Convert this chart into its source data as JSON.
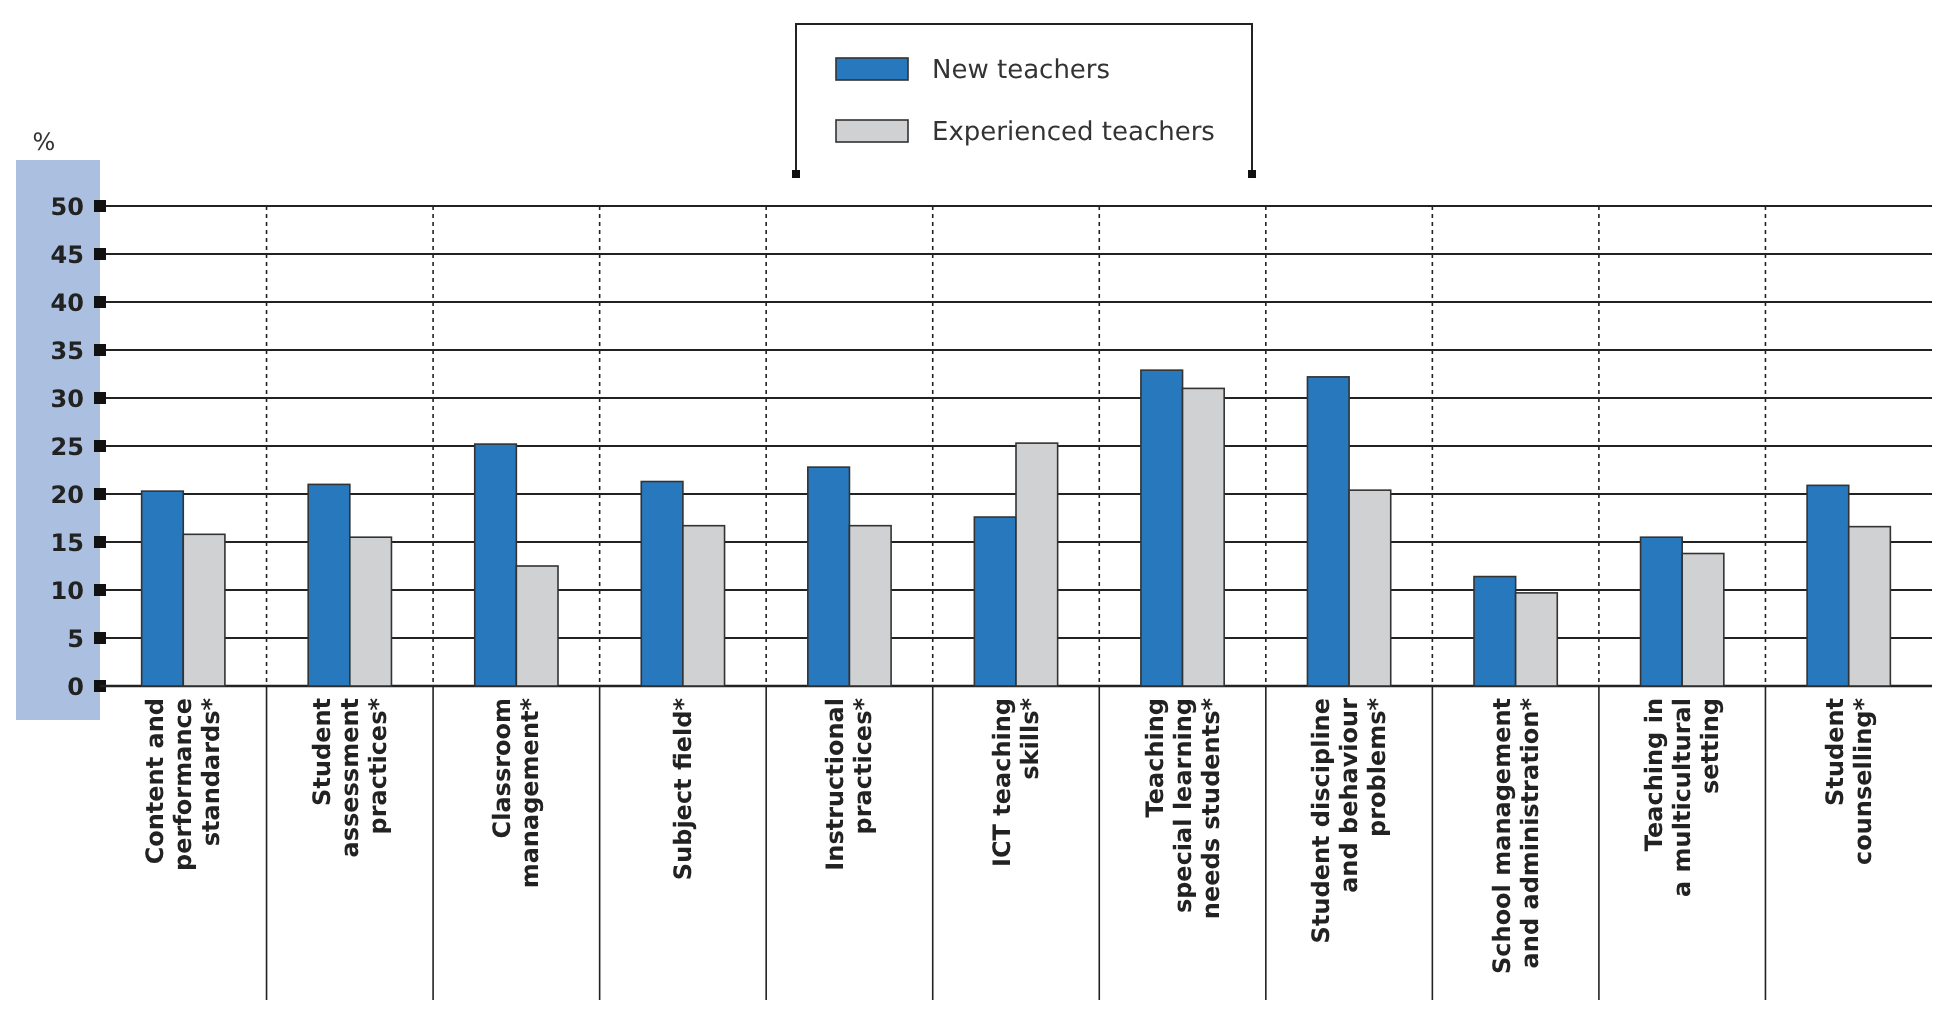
{
  "chart_data": {
    "type": "bar",
    "ylabel": "%",
    "categories": [
      "Content and\nperformance\nstandards*",
      "Student\nassessment\npractices*",
      "Classroom\nmanagement*",
      "Subject field*",
      "Instructional\npractices*",
      "ICT teaching\nskills*",
      "Teaching\nspecial learning\nneeds students*",
      "Student discipline\nand behaviour\nproblems*",
      "School management\nand administration*",
      "Teaching in\na multicultural\nsetting",
      "Student\ncounselling*"
    ],
    "series": [
      {
        "name": "New teachers",
        "color": "#2878be",
        "values": [
          20.3,
          21.0,
          25.2,
          21.3,
          22.8,
          17.6,
          32.9,
          32.2,
          11.4,
          15.5,
          20.9
        ]
      },
      {
        "name": "Experienced teachers",
        "color": "#d0d1d3",
        "values": [
          15.8,
          15.5,
          12.5,
          16.7,
          16.7,
          25.3,
          31.0,
          20.4,
          9.7,
          13.8,
          16.6
        ]
      }
    ],
    "ylim": [
      0,
      50
    ],
    "yticks": [
      0,
      5,
      10,
      15,
      20,
      25,
      30,
      35,
      40,
      45,
      50
    ],
    "grid": "y",
    "legend": "top"
  }
}
